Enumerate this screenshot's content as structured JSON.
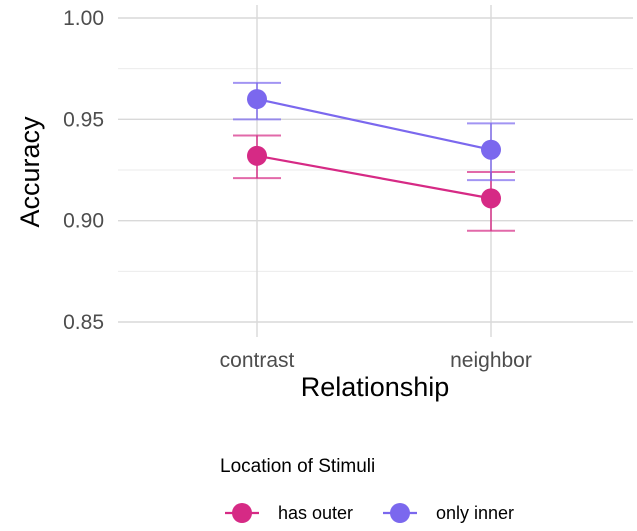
{
  "chart_data": {
    "type": "line",
    "xlabel": "Relationship",
    "ylabel": "Accuracy",
    "categories": [
      "contrast",
      "neighbor"
    ],
    "ylim": [
      0.85,
      1.0
    ],
    "yticks": [
      "0.85",
      "0.90",
      "0.95",
      "1.00"
    ],
    "grid": true,
    "legend": {
      "title": "Location of Stimuli",
      "position": "bottom"
    },
    "series": [
      {
        "name": "has outer",
        "color": "#d62a85",
        "values": [
          0.932,
          0.911
        ],
        "lower": [
          0.921,
          0.895
        ],
        "upper": [
          0.942,
          0.924
        ]
      },
      {
        "name": "only inner",
        "color": "#7b68ee",
        "values": [
          0.96,
          0.935
        ],
        "lower": [
          0.95,
          0.92
        ],
        "upper": [
          0.968,
          0.948
        ]
      }
    ]
  }
}
